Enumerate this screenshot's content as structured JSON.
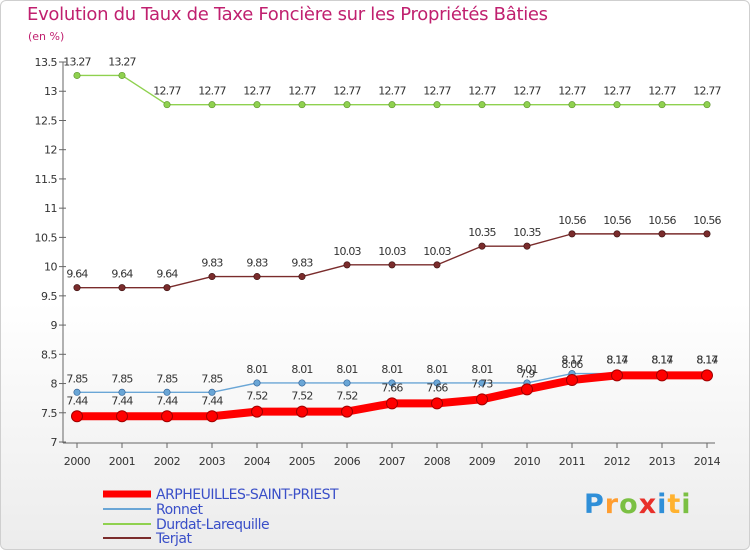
{
  "chart_data": {
    "type": "line",
    "title": "Evolution du Taux de Taxe Foncière sur les Propriétés Bâties",
    "unit_label": "(en %)",
    "xlabel": "",
    "ylabel": "",
    "ylim": [
      7,
      13.5
    ],
    "yticks": [
      "7",
      "7.5",
      "8",
      "8.5",
      "9",
      "9.5",
      "10",
      "10.5",
      "11",
      "11.5",
      "12",
      "12.5",
      "13",
      "13.5"
    ],
    "x": [
      "2000",
      "2001",
      "2002",
      "2003",
      "2004",
      "2005",
      "2006",
      "2007",
      "2008",
      "2009",
      "2010",
      "2011",
      "2012",
      "2013",
      "2014"
    ],
    "series": [
      {
        "name": "Durdat-Larequille",
        "color": "#8fd14f",
        "values": [
          13.27,
          13.27,
          12.77,
          12.77,
          12.77,
          12.77,
          12.77,
          12.77,
          12.77,
          12.77,
          12.77,
          12.77,
          12.77,
          12.77,
          12.77
        ],
        "labels": [
          "13.27",
          "13.27",
          "12.77",
          "12.77",
          "12.77",
          "12.77",
          "12.77",
          "12.77",
          "12.77",
          "12.77",
          "12.77",
          "12.77",
          "12.77",
          "12.77",
          "12.77"
        ]
      },
      {
        "name": "Terjat",
        "color": "#7a2c2c",
        "values": [
          9.64,
          9.64,
          9.64,
          9.83,
          9.83,
          9.83,
          10.03,
          10.03,
          10.03,
          10.35,
          10.35,
          10.56,
          10.56,
          10.56,
          10.56
        ],
        "labels": [
          "9.64",
          "9.64",
          "9.64",
          "9.83",
          "9.83",
          "9.83",
          "10.03",
          "10.03",
          "10.03",
          "10.35",
          "10.35",
          "10.56",
          "10.56",
          "10.56",
          "10.56"
        ]
      },
      {
        "name": "Ronnet",
        "color": "#6aa6d6",
        "values": [
          7.85,
          7.85,
          7.85,
          7.85,
          8.01,
          8.01,
          8.01,
          8.01,
          8.01,
          8.01,
          8.01,
          8.17,
          8.17,
          8.17,
          8.17
        ],
        "labels": [
          "7.85",
          "7.85",
          "7.85",
          "7.85",
          "8.01",
          "8.01",
          "8.01",
          "8.01",
          "8.01",
          "8.01",
          "8.01",
          "8.17",
          "8.17",
          "8.17",
          "8.17"
        ]
      },
      {
        "name": "ARPHEUILLES-SAINT-PRIEST",
        "color": "#ff0000",
        "values": [
          7.44,
          7.44,
          7.44,
          7.44,
          7.52,
          7.52,
          7.52,
          7.66,
          7.66,
          7.73,
          7.9,
          8.06,
          8.14,
          8.14,
          8.14
        ],
        "labels": [
          "7.44",
          "7.44",
          "7.44",
          "7.44",
          "7.52",
          "7.52",
          "7.52",
          "7.66",
          "7.66",
          "7.73",
          "7.9",
          "8.06",
          "8.14",
          "8.14",
          "8.14"
        ]
      }
    ],
    "legend": {
      "position": "bottom-left",
      "order": [
        "ARPHEUILLES-SAINT-PRIEST",
        "Ronnet",
        "Durdat-Larequille",
        "Terjat"
      ]
    },
    "grid": false
  },
  "brand": {
    "text": "Proxiti"
  }
}
